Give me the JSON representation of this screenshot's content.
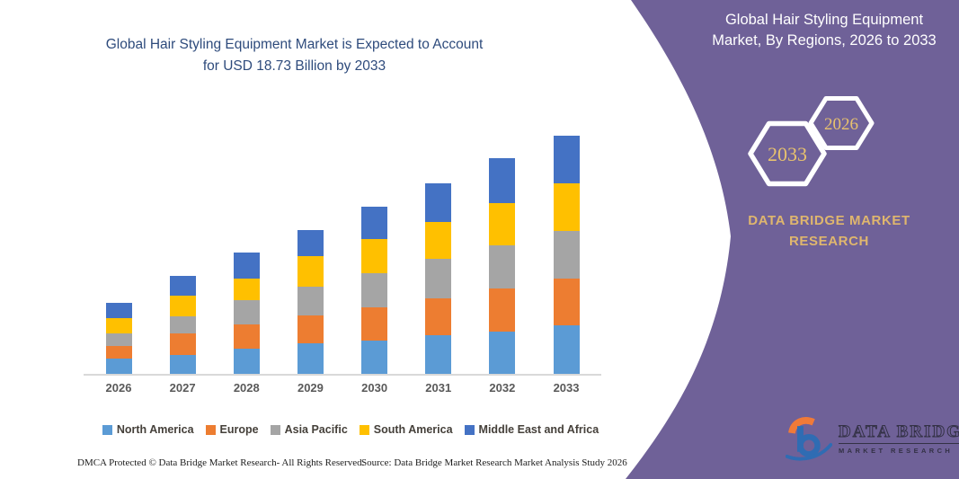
{
  "header": {
    "title": "Global Hair Styling Equipment Market is Expected to Account for USD 18.73 Billion by 2033",
    "title_line1": "Global Hair Styling Equipment Market is Expected to Account",
    "title_line2": "for USD 18.73 Billion by 2033",
    "title_color": "#2e4b7c"
  },
  "chart_data": {
    "type": "bar",
    "stacked": true,
    "title": "Global Hair Styling Equipment Market is Expected to Account for USD 18.73 Billion by 2033",
    "xlabel": "",
    "ylabel": "",
    "unit": "USD Billion",
    "grid": false,
    "legend_position": "bottom",
    "categories": [
      "2026",
      "2027",
      "2028",
      "2029",
      "2030",
      "2031",
      "2032",
      "2033"
    ],
    "series": [
      {
        "name": "North America",
        "color": "#5B9BD5",
        "values": [
          1.2,
          1.5,
          2.0,
          2.4,
          2.6,
          3.0,
          3.3,
          3.8
        ]
      },
      {
        "name": "Europe",
        "color": "#ED7D31",
        "values": [
          1.0,
          1.7,
          1.9,
          2.2,
          2.6,
          2.9,
          3.4,
          3.7
        ]
      },
      {
        "name": "Asia Pacific",
        "color": "#A5A5A5",
        "values": [
          1.0,
          1.3,
          1.9,
          2.2,
          2.7,
          3.1,
          3.4,
          3.7
        ]
      },
      {
        "name": "South America",
        "color": "#FFC000",
        "values": [
          1.2,
          1.6,
          1.7,
          2.4,
          2.7,
          2.9,
          3.3,
          3.7
        ]
      },
      {
        "name": "Middle East and Africa",
        "color": "#4472C4",
        "values": [
          1.2,
          1.6,
          2.0,
          2.1,
          2.5,
          3.0,
          3.5,
          3.8
        ]
      }
    ],
    "totals": [
      5.6,
      7.7,
      9.5,
      11.3,
      13.1,
      14.9,
      16.9,
      18.73
    ],
    "ylim": [
      0,
      18.73
    ]
  },
  "panel": {
    "title": "Global Hair Styling Equipment Market, By Regions, 2026 to 2033",
    "title_line1": "Global Hair Styling Equipment",
    "title_line2": "Market, By Regions, 2026 to 2033",
    "hexagon_year_end": "2033",
    "hexagon_year_start": "2026",
    "brand_line1": "DATA BRIDGE MARKET",
    "brand_line2": "RESEARCH",
    "background": "#6F6198",
    "accent_gold": "#E6BE72"
  },
  "logo": {
    "name": "DATA BRIDGE",
    "subtitle": "MARKET RESEARCH"
  },
  "footer": {
    "left": "DMCA Protected © Data Bridge Market Research-  All Rights Reserved.",
    "source": "Source: Data Bridge Market Research  Market Analysis Study 2026"
  }
}
